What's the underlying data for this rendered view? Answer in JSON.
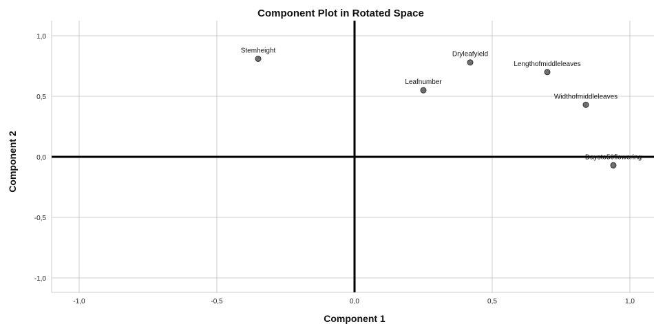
{
  "chart_data": {
    "type": "scatter",
    "title": "Component Plot in Rotated Space",
    "xlabel": "Component 1",
    "ylabel": "Component 2",
    "xlim": [
      -1.1,
      1.1
    ],
    "ylim": [
      -1.1,
      1.1
    ],
    "xticks": [
      -1.0,
      -0.5,
      0.0,
      0.5,
      1.0
    ],
    "yticks": [
      -1.0,
      -0.5,
      0.0,
      0.5,
      1.0
    ],
    "xtick_labels": [
      "-1,0",
      "-0,5",
      "0,0",
      "0,5",
      "1,0"
    ],
    "ytick_labels": [
      "-1,0",
      "-0,5",
      "0,0",
      "0,5",
      "1,0"
    ],
    "grid": true,
    "reference_lines": {
      "x": 0,
      "y": 0
    },
    "points": [
      {
        "label": "Stemheight",
        "x": -0.35,
        "y": 0.81
      },
      {
        "label": "Dryleafyield",
        "x": 0.42,
        "y": 0.78
      },
      {
        "label": "Lengthofmiddleleaves",
        "x": 0.7,
        "y": 0.7
      },
      {
        "label": "Leafnumber",
        "x": 0.25,
        "y": 0.55
      },
      {
        "label": "Widthofmiddleleaves",
        "x": 0.84,
        "y": 0.43
      },
      {
        "label": "Daysto50flowering",
        "x": 0.94,
        "y": -0.07
      }
    ]
  },
  "colors": {
    "background": "#ffffff",
    "grid": "#cccccc",
    "reference_line": "#000000",
    "marker_fill": "#6e6e6e",
    "marker_stroke": "#333333",
    "text": "#111111"
  }
}
